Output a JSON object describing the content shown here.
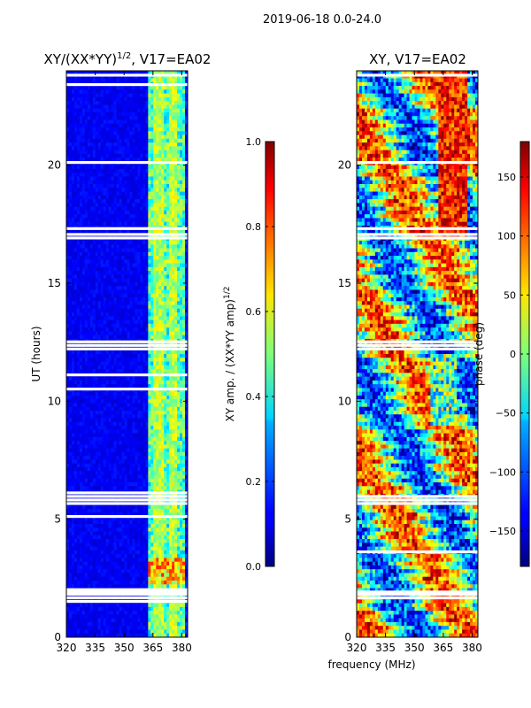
{
  "suptitle": "2019-06-18 0.0-24.0",
  "chart_data": [
    {
      "type": "heatmap",
      "title": "XY/(XX*YY)^1/2, V17=EA02",
      "title_main": "XY/(XX*YY)",
      "title_exp": "1/2",
      "title_tail": ", V17=EA02",
      "xlabel": "",
      "ylabel": "UT (hours)",
      "xlim": [
        320,
        383
      ],
      "ylim": [
        0,
        24
      ],
      "xticks": [
        320,
        335,
        350,
        365,
        380
      ],
      "yticks": [
        0,
        5,
        10,
        15,
        20
      ],
      "xtick_labels": [
        "320",
        "335",
        "350",
        "365",
        "380"
      ],
      "ytick_labels": [
        "0",
        "5",
        "10",
        "15",
        "20"
      ],
      "colorbar": {
        "label": "XY amp. / (XX*YY amp)^1/2",
        "label_main": "XY amp. / (XX*YY amp)",
        "label_exp": "1/2",
        "range": [
          0.0,
          1.0
        ],
        "ticks": [
          0.0,
          0.2,
          0.4,
          0.6,
          0.8,
          1.0
        ],
        "tick_labels": [
          "0.0",
          "0.2",
          "0.4",
          "0.6",
          "0.8",
          "1.0"
        ]
      },
      "colormap": "jet",
      "bright_band_mhz": [
        363,
        381
      ],
      "gap_rows_hours": [
        23.8,
        23.4,
        20.1,
        17.3,
        17.05,
        16.9,
        12.5,
        12.35,
        12.2,
        11.1,
        10.5,
        6.1,
        5.95,
        5.8,
        5.65,
        5.1,
        2.0,
        1.9,
        1.8,
        1.65,
        1.5
      ]
    },
    {
      "type": "heatmap",
      "title": "XY, V17=EA02",
      "xlabel": "frequency (MHz)",
      "ylabel": "",
      "xlim": [
        320,
        383
      ],
      "ylim": [
        0,
        24
      ],
      "xticks": [
        320,
        335,
        350,
        365,
        380
      ],
      "yticks": [
        0,
        5,
        10,
        15,
        20
      ],
      "xtick_labels": [
        "320",
        "335",
        "350",
        "365",
        "380"
      ],
      "ytick_labels": [
        "0",
        "5",
        "10",
        "15",
        "20"
      ],
      "colorbar": {
        "label": "phase (deg)",
        "range": [
          -180,
          180
        ],
        "ticks": [
          -150,
          -100,
          -50,
          0,
          50,
          100,
          150
        ],
        "tick_labels": [
          "−150",
          "−100",
          "−50",
          "0",
          "50",
          "100",
          "150"
        ]
      },
      "colormap": "jet",
      "gap_rows_hours": [
        23.8,
        20.1,
        17.3,
        17.05,
        16.9,
        12.5,
        12.35,
        12.2,
        5.95,
        5.8,
        5.65,
        3.6,
        1.9,
        1.8,
        1.65
      ]
    }
  ]
}
